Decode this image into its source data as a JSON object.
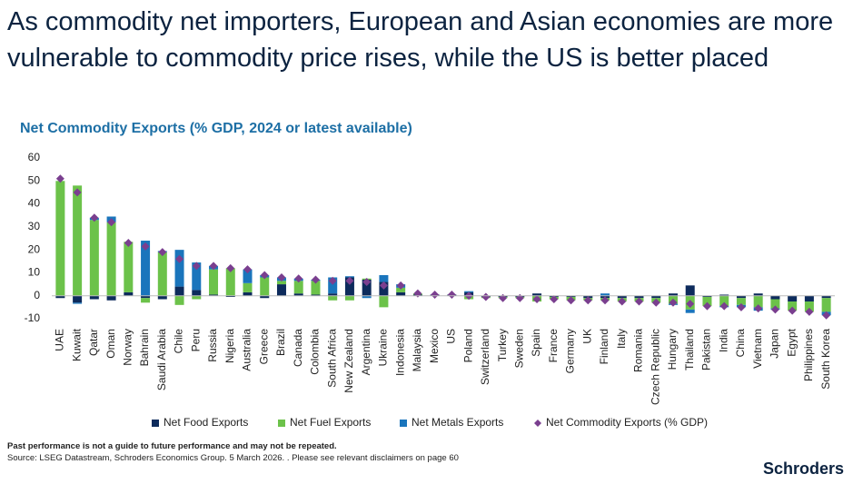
{
  "chart_data": {
    "type": "bar",
    "title": "As commodity net importers, European and Asian economies are more vulnerable to commodity price rises, while the US is better placed",
    "subtitle": "Net Commodity Exports (% GDP, 2024 or latest available)",
    "categories": [
      "UAE",
      "Kuwait",
      "Qatar",
      "Oman",
      "Norway",
      "Bahrain",
      "Saudi Arabia",
      "Chile",
      "Peru",
      "Russia",
      "Nigeria",
      "Australia",
      "Greece",
      "Brazil",
      "Canada",
      "Colombia",
      "South Africa",
      "New Zealand",
      "Argentina",
      "Ukraine",
      "Indonesia",
      "Malaysia",
      "Mexico",
      "US",
      "Poland",
      "Switzerland",
      "Turkey",
      "Sweden",
      "Spain",
      "France",
      "Germany",
      "UK",
      "Finland",
      "Italy",
      "Romania",
      "Czech Republic",
      "Hungary",
      "Thailand",
      "Pakistan",
      "India",
      "China",
      "Vietnam",
      "Japan",
      "Egypt",
      "Philippines",
      "South Korea"
    ],
    "series": [
      {
        "name": "Net Food Exports",
        "color": "#0d2b5c",
        "values": [
          -1,
          -3,
          -1.5,
          -2,
          1.5,
          -1,
          -1.5,
          4,
          2.5,
          0.5,
          -0.5,
          1.5,
          -1,
          5,
          1,
          0.5,
          1,
          8,
          7,
          6,
          1.5,
          0.5,
          0.5,
          0.5,
          1.5,
          -0.5,
          -0.5,
          -0.5,
          1,
          -0.5,
          -0.5,
          -1,
          -1,
          -1,
          -1,
          -1,
          1,
          4.5,
          -0.5,
          0.5,
          -1,
          1,
          -1.5,
          -2.5,
          -2.5,
          -1
        ]
      },
      {
        "name": "Net Fuel Exports",
        "color": "#6cc24a",
        "values": [
          50,
          48,
          33,
          32,
          22,
          -2,
          19,
          -4,
          -1.5,
          11,
          12,
          4,
          8,
          1.5,
          5.5,
          6,
          -2,
          -2,
          0.5,
          -5,
          2,
          0.5,
          0,
          0,
          -1.5,
          -0.5,
          -0.5,
          -0.5,
          -2.5,
          -1,
          -1.5,
          -1,
          -1,
          -1.5,
          -1.5,
          -2,
          -3.5,
          -6,
          -4,
          -4.5,
          -3,
          -5,
          -4,
          -4,
          -4.5,
          -6
        ]
      },
      {
        "name": "Net Metals Exports",
        "color": "#1a75bc",
        "values": [
          0,
          -0.5,
          1,
          2.5,
          0,
          24,
          0.5,
          16,
          12,
          1.5,
          0,
          6,
          1,
          1.5,
          1,
          0.5,
          7,
          0.5,
          -1,
          3,
          1.5,
          0,
          0,
          0,
          0.5,
          0,
          0,
          0,
          0,
          0,
          0,
          0,
          1,
          0,
          0,
          0,
          -0.5,
          -1.5,
          0,
          -0.5,
          -1,
          -1.5,
          -0.5,
          0,
          0,
          -1.5
        ]
      },
      {
        "name": "Net Commodity Exports (% GDP)",
        "color": "#7a3f8f",
        "marker": "diamond",
        "values": [
          51,
          45,
          34,
          32,
          23,
          21.5,
          19,
          16,
          13,
          13,
          12,
          11.5,
          9,
          8,
          7.5,
          7,
          6.5,
          6.5,
          6,
          4.5,
          4.5,
          1,
          0.5,
          0.5,
          0,
          -0.5,
          -1,
          -1,
          -1.5,
          -1.5,
          -2,
          -2,
          -2,
          -2.5,
          -2.5,
          -3,
          -3,
          -3.5,
          -4.5,
          -4.5,
          -5,
          -5.5,
          -6,
          -6.5,
          -7,
          -8.5
        ]
      }
    ],
    "ylim": [
      -10,
      60
    ],
    "yticks": [
      -10,
      0,
      10,
      20,
      30,
      40,
      50,
      60
    ],
    "grid": false
  },
  "footnote": "Past performance is not a guide to future performance and may not be repeated.",
  "source": "Source: LSEG Datastream, Schroders Economics Group. 5 March 2026. . Please see relevant disclaimers on page 60",
  "brand": "Schroders"
}
